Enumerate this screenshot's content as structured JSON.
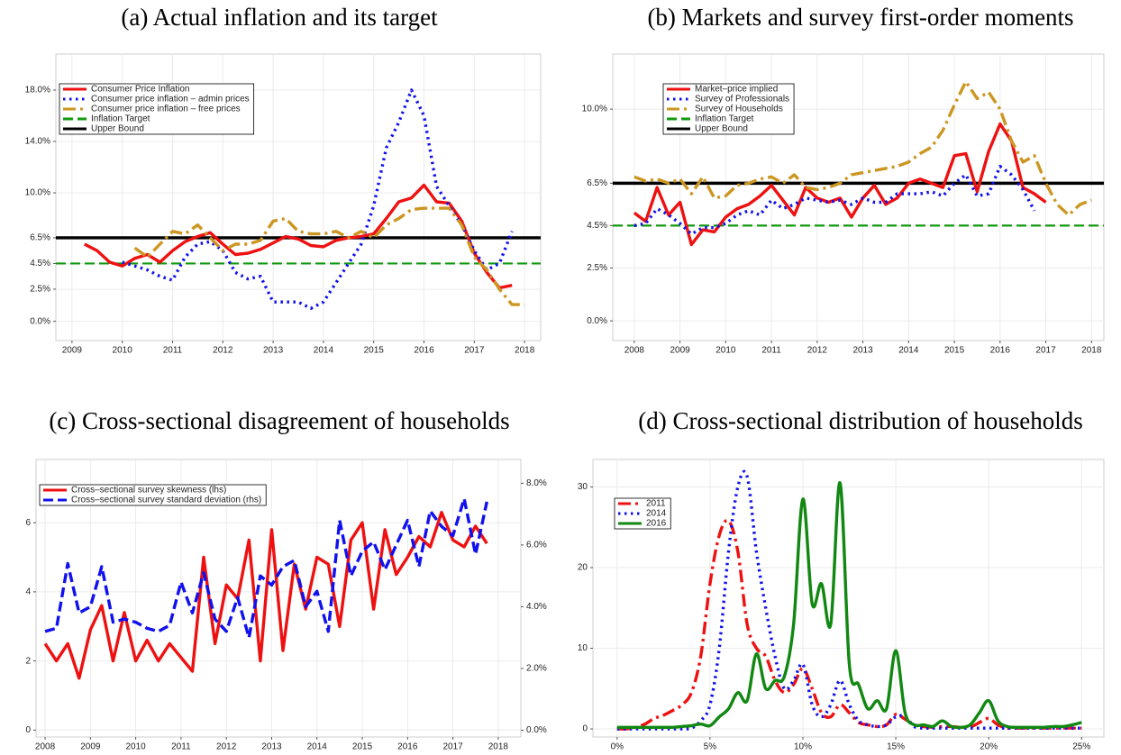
{
  "chart_data": [
    {
      "type": "line",
      "title": "(a) Actual inflation and its target",
      "legend": "upper left",
      "grid": true,
      "xlim": [
        2008.68,
        2018.32
      ],
      "xticks": [
        2009,
        2010,
        2011,
        2012,
        2013,
        2014,
        2015,
        2016,
        2017,
        2018
      ],
      "ylim": [
        -1.5,
        20.8
      ],
      "yticks": [
        {
          "value": 0,
          "label": "0.0%"
        },
        {
          "value": 2.5,
          "label": "2.5%"
        },
        {
          "value": 4.5,
          "label": "4.5%"
        },
        {
          "value": 6.5,
          "label": "6.5%"
        },
        {
          "value": 10,
          "label": "10.0%"
        },
        {
          "value": 14,
          "label": "14.0%"
        },
        {
          "value": 18,
          "label": "18.0%"
        }
      ],
      "x": [
        2009.25,
        2009.5,
        2009.75,
        2010,
        2010.25,
        2010.5,
        2010.75,
        2011,
        2011.25,
        2011.5,
        2011.75,
        2012,
        2012.25,
        2012.5,
        2012.75,
        2013,
        2013.25,
        2013.5,
        2013.75,
        2014,
        2014.25,
        2014.5,
        2014.75,
        2015,
        2015.25,
        2015.5,
        2015.75,
        2016,
        2016.25,
        2016.5,
        2016.75,
        2017,
        2017.25,
        2017.5,
        2017.75,
        2018
      ],
      "series": [
        {
          "name": "Consumer Price Inflation",
          "color": "#ee1111",
          "dash": "solid",
          "values": [
            6.0,
            5.5,
            4.6,
            4.3,
            4.9,
            5.2,
            4.6,
            5.5,
            6.2,
            6.6,
            6.9,
            6.0,
            5.2,
            5.3,
            5.6,
            6.1,
            6.6,
            6.4,
            5.9,
            5.8,
            6.3,
            6.5,
            6.6,
            6.8,
            8.0,
            9.3,
            9.6,
            10.6,
            9.3,
            9.2,
            7.8,
            5.3,
            3.8,
            2.6,
            2.8,
            null
          ]
        },
        {
          "name": "Consumer price inflation – admin prices",
          "color": "#1111ee",
          "dash": "dotted",
          "values": [
            null,
            null,
            null,
            4.6,
            4.3,
            4.0,
            3.5,
            3.2,
            5.0,
            6.0,
            6.2,
            5.5,
            3.8,
            3.3,
            3.5,
            1.5,
            1.5,
            1.5,
            1.0,
            1.5,
            3.0,
            4.5,
            6.0,
            9.0,
            13.5,
            15.5,
            18.0,
            16.0,
            10.5,
            9.0,
            7.5,
            5.5,
            4.0,
            4.5,
            7.0,
            null
          ]
        },
        {
          "name": "Consumer price inflation – free prices",
          "color": "#cc9622",
          "dash": "dashdot",
          "values": [
            null,
            null,
            null,
            null,
            5.7,
            5.0,
            6.0,
            7.0,
            6.8,
            7.5,
            6.5,
            5.5,
            6.0,
            6.0,
            6.3,
            7.8,
            8.0,
            7.0,
            6.8,
            6.8,
            7.0,
            6.5,
            7.0,
            6.5,
            7.5,
            8.0,
            8.7,
            8.8,
            8.8,
            8.8,
            7.5,
            5.0,
            4.0,
            2.5,
            1.3,
            1.3
          ]
        }
      ],
      "hlines": [
        {
          "name": "Inflation Target",
          "color": "#119911",
          "dash": "dashed",
          "value": 4.5
        },
        {
          "name": "Upper Bound",
          "color": "#000000",
          "dash": "solid",
          "value": 6.5
        }
      ]
    },
    {
      "type": "line",
      "title": "(b) Markets and survey first-order moments",
      "legend": "upper left",
      "grid": true,
      "xlim": [
        2007.53,
        2018.27
      ],
      "xticks": [
        2008,
        2009,
        2010,
        2011,
        2012,
        2013,
        2014,
        2015,
        2016,
        2017,
        2018
      ],
      "ylim": [
        -0.93,
        12.6
      ],
      "yticks": [
        {
          "value": 0,
          "label": "0.0%"
        },
        {
          "value": 2.5,
          "label": "2.5%"
        },
        {
          "value": 4.5,
          "label": "4.5%"
        },
        {
          "value": 6.5,
          "label": "6.5%"
        },
        {
          "value": 10,
          "label": "10.0%"
        }
      ],
      "x": [
        2008,
        2008.25,
        2008.5,
        2008.75,
        2009,
        2009.25,
        2009.5,
        2009.75,
        2010,
        2010.25,
        2010.5,
        2010.75,
        2011,
        2011.25,
        2011.5,
        2011.75,
        2012,
        2012.25,
        2012.5,
        2012.75,
        2013,
        2013.25,
        2013.5,
        2013.75,
        2014,
        2014.25,
        2014.5,
        2014.75,
        2015,
        2015.25,
        2015.5,
        2015.75,
        2016,
        2016.25,
        2016.5,
        2016.75,
        2017,
        2017.25,
        2017.5,
        2017.75,
        2018
      ],
      "series": [
        {
          "name": "Market–price implied",
          "color": "#ee1111",
          "dash": "solid",
          "values": [
            5.1,
            4.7,
            6.3,
            5.0,
            5.6,
            3.6,
            4.3,
            4.2,
            4.9,
            5.3,
            5.5,
            5.9,
            6.4,
            5.7,
            5.0,
            6.3,
            5.8,
            5.6,
            5.8,
            4.9,
            5.8,
            6.4,
            5.5,
            5.8,
            6.5,
            6.7,
            6.5,
            6.3,
            7.8,
            7.9,
            6.1,
            8.0,
            9.3,
            8.5,
            6.3,
            6.0,
            5.6,
            null,
            null,
            null,
            null
          ]
        },
        {
          "name": "Survey of Professionals",
          "color": "#1111ee",
          "dash": "dotted",
          "values": [
            4.5,
            4.6,
            5.3,
            5.0,
            4.6,
            4.1,
            4.4,
            4.4,
            4.6,
            5.0,
            5.2,
            5.0,
            5.7,
            5.3,
            5.5,
            5.8,
            5.7,
            5.6,
            5.7,
            5.5,
            5.8,
            5.6,
            5.6,
            6.0,
            6.0,
            6.0,
            6.1,
            5.9,
            6.5,
            6.9,
            5.9,
            6.0,
            7.3,
            6.9,
            6.2,
            5.2,
            null,
            null,
            null,
            null,
            null
          ]
        },
        {
          "name": "Survey of Households",
          "color": "#cc9622",
          "dash": "dashdot",
          "values": [
            6.8,
            6.6,
            6.7,
            6.5,
            6.7,
            6.0,
            6.8,
            5.8,
            5.9,
            6.4,
            6.5,
            6.7,
            6.8,
            6.5,
            6.9,
            6.3,
            6.2,
            6.3,
            6.5,
            6.9,
            7.0,
            7.1,
            7.2,
            7.3,
            7.5,
            7.9,
            8.2,
            9.0,
            10.2,
            11.3,
            10.5,
            10.8,
            10.0,
            8.5,
            7.5,
            7.8,
            6.5,
            5.5,
            5.0,
            5.5,
            5.7
          ]
        }
      ],
      "hlines": [
        {
          "name": "Inflation Target",
          "color": "#119911",
          "dash": "dashed",
          "value": 4.5
        },
        {
          "name": "Upper Bound",
          "color": "#000000",
          "dash": "solid",
          "value": 6.5
        }
      ]
    },
    {
      "type": "line",
      "title": "(c) Cross-sectional disagreement of households",
      "legend": "upper left",
      "grid": true,
      "xlim": [
        2007.8,
        2018.5
      ],
      "xticks": [
        2008,
        2009,
        2010,
        2011,
        2012,
        2013,
        2014,
        2015,
        2016,
        2017,
        2018
      ],
      "ylim": [
        -0.2,
        7.83
      ],
      "yticks": [
        0,
        2,
        4,
        6
      ],
      "y2lim": [
        -0.22,
        8.77
      ],
      "y2ticks": [
        {
          "value": 0,
          "label": "0.0%"
        },
        {
          "value": 2,
          "label": "2.0%"
        },
        {
          "value": 4,
          "label": "4.0%"
        },
        {
          "value": 6,
          "label": "6.0%"
        },
        {
          "value": 8,
          "label": "8.0%"
        }
      ],
      "x": [
        2008,
        2008.25,
        2008.5,
        2008.75,
        2009,
        2009.25,
        2009.5,
        2009.75,
        2010,
        2010.25,
        2010.5,
        2010.75,
        2011,
        2011.25,
        2011.5,
        2011.75,
        2012,
        2012.25,
        2012.5,
        2012.75,
        2013,
        2013.25,
        2013.5,
        2013.75,
        2014,
        2014.25,
        2014.5,
        2014.75,
        2015,
        2015.25,
        2015.5,
        2015.75,
        2016,
        2016.25,
        2016.5,
        2016.75,
        2017,
        2017.25,
        2017.5,
        2017.75
      ],
      "series": [
        {
          "name": "Cross–sectional survey skewness (lhs)",
          "color": "#ee1111",
          "dash": "solid",
          "values": [
            2.5,
            2.0,
            2.5,
            1.5,
            2.9,
            3.6,
            2.0,
            3.4,
            2.0,
            2.6,
            2.0,
            2.5,
            2.1,
            1.7,
            5.0,
            2.5,
            4.2,
            3.8,
            5.5,
            2.0,
            5.8,
            2.3,
            4.8,
            3.5,
            5.0,
            4.8,
            3.0,
            5.5,
            6.0,
            3.5,
            5.8,
            4.5,
            5.0,
            5.6,
            5.3,
            6.3,
            5.5,
            5.3,
            5.9,
            5.4
          ]
        },
        {
          "name": "Cross–sectional survey standard deviation (rhs)",
          "color": "#1111ee",
          "dash": "dashed",
          "axis": "y2",
          "values": [
            3.2,
            3.3,
            5.4,
            3.8,
            4.0,
            5.3,
            3.5,
            3.6,
            3.5,
            3.3,
            3.2,
            3.4,
            4.8,
            3.8,
            5.1,
            3.6,
            3.2,
            4.3,
            3.0,
            5.0,
            4.7,
            5.3,
            5.5,
            4.0,
            4.5,
            3.2,
            6.8,
            5.0,
            5.8,
            6.1,
            5.2,
            6.0,
            6.8,
            5.3,
            7.1,
            6.6,
            6.3,
            7.5,
            5.7,
            7.4
          ]
        }
      ]
    },
    {
      "type": "line",
      "title": "(d) Cross-sectional distribution of households",
      "legend": "upper left",
      "grid": true,
      "xlim": [
        -1.3,
        26.2
      ],
      "xticks": [
        {
          "value": 0,
          "label": "0%"
        },
        {
          "value": 5,
          "label": "5%"
        },
        {
          "value": 10,
          "label": "10%"
        },
        {
          "value": 15,
          "label": "15%"
        },
        {
          "value": 20,
          "label": "20%"
        },
        {
          "value": 25,
          "label": "25%"
        }
      ],
      "ylim": [
        -1.0,
        33.4
      ],
      "yticks": [
        0,
        10,
        20,
        30
      ],
      "x": [
        0,
        0.5,
        1,
        1.5,
        2,
        2.5,
        3,
        3.5,
        4,
        4.5,
        5,
        5.5,
        6,
        6.5,
        7,
        7.5,
        8,
        8.5,
        9,
        9.5,
        10,
        10.5,
        11,
        11.5,
        12,
        12.5,
        13,
        13.5,
        14,
        14.5,
        15,
        15.5,
        16,
        16.5,
        17,
        17.5,
        18,
        18.5,
        19,
        19.5,
        20,
        20.5,
        21,
        21.5,
        22,
        22.5,
        23,
        23.5,
        24,
        24.5,
        25
      ],
      "series": [
        {
          "name": "2011",
          "color": "#ee1111",
          "dash": "dashdot",
          "values": [
            0,
            0,
            0.2,
            0.6,
            1.3,
            1.7,
            2.3,
            3.0,
            4.5,
            9,
            18,
            24,
            25.8,
            22,
            13,
            10,
            9,
            6,
            4.5,
            5.5,
            7.5,
            5,
            2,
            1.5,
            3,
            2,
            0.8,
            0.5,
            0.3,
            0.5,
            1.8,
            1.2,
            0.5,
            0.3,
            0.2,
            0.3,
            0.3,
            0.2,
            0.2,
            0.8,
            1.3,
            0.5,
            0.1,
            0.1,
            0.1,
            0.1,
            0.1,
            0.1,
            0.1,
            0.1,
            0.1
          ]
        },
        {
          "name": "2014",
          "color": "#1111ee",
          "dash": "dotted",
          "values": [
            0,
            0,
            0,
            0,
            0,
            0,
            0,
            0,
            0.1,
            1,
            3,
            10,
            22,
            30,
            31.3,
            22,
            15,
            9,
            5,
            6,
            8,
            3,
            1.5,
            3,
            6,
            3,
            1,
            0.5,
            0.3,
            0.5,
            1.5,
            1.5,
            0.3,
            0.1,
            0.1,
            0.1,
            0.1,
            0.1,
            0.1,
            0.1,
            0.1,
            0.1,
            0.1,
            0.1,
            0.1,
            0.1,
            0.1,
            0.1,
            0.1,
            0.1,
            0.1
          ]
        },
        {
          "name": "2016",
          "color": "#118811",
          "dash": "solid",
          "values": [
            0.2,
            0.2,
            0.2,
            0.2,
            0.2,
            0.2,
            0.2,
            0.3,
            0.4,
            0.6,
            0.4,
            1.5,
            2.5,
            4.5,
            3.5,
            9.3,
            5,
            6,
            6.5,
            13,
            28.5,
            15.5,
            18,
            13,
            30.5,
            8,
            5.5,
            2.5,
            3.5,
            2.5,
            9.7,
            2,
            0.5,
            0.5,
            0.3,
            1,
            0.3,
            0.2,
            0.5,
            2,
            3.5,
            1,
            0.3,
            0.2,
            0.2,
            0.2,
            0.2,
            0.3,
            0.3,
            0.5,
            0.8
          ]
        }
      ]
    }
  ]
}
